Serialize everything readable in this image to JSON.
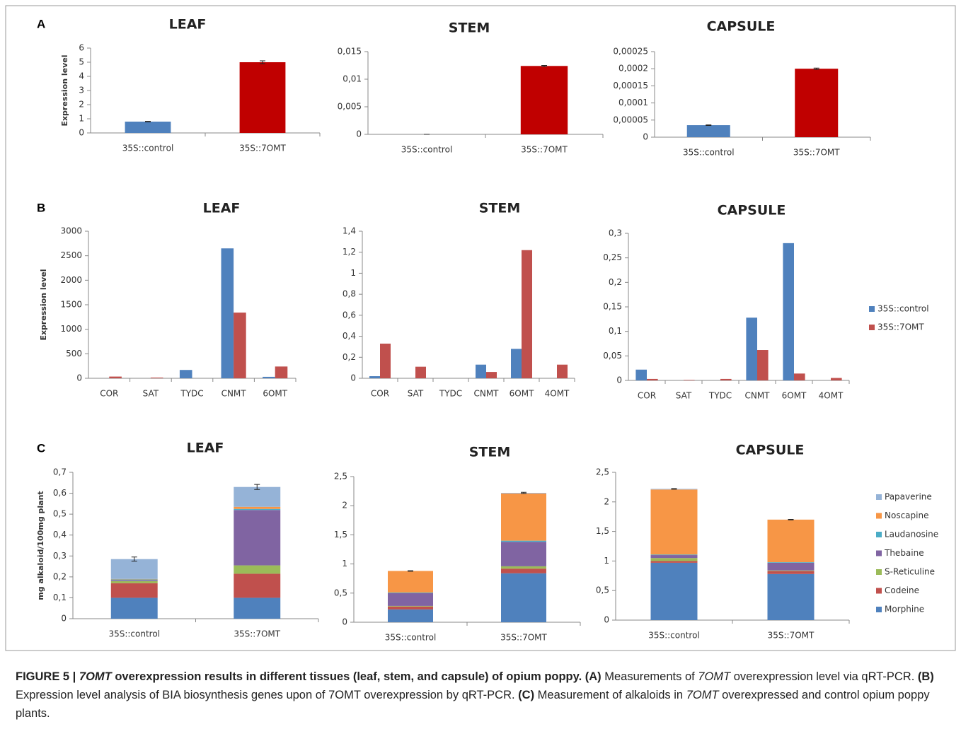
{
  "panels": [
    "A",
    "B",
    "C"
  ],
  "caption": [
    "FIGURE 5 | ",
    "7OMT",
    " overexpression results in different tissues (leaf, stem, and capsule) of opium poppy. ",
    "(A)",
    " Measurements of ",
    "7OMT",
    " overexpression level via qRT-PCR. ",
    "(B)",
    " Expression level analysis of BIA biosynthesis genes upon of 7OMT overexpression by qRT-PCR. ",
    "(C)",
    " Measurement of alkaloids in ",
    "7OMT",
    " overexpressed and control opium poppy plants."
  ],
  "chart_data": [
    {
      "type": "bar",
      "title": "LEAF",
      "y_label": "Expression level",
      "categories": [
        "35S::control",
        "35S::7OMT"
      ],
      "values": [
        0.8,
        5.0
      ],
      "errors": [
        0.02,
        0.1
      ],
      "colors": [
        "#4f81bd",
        "#c00000"
      ],
      "ylim": [
        0,
        6
      ],
      "yticks": [
        0,
        1,
        2,
        3,
        4,
        5,
        6
      ]
    },
    {
      "type": "bar",
      "title": "STEM",
      "categories": [
        "35S::control",
        "35S::7OMT"
      ],
      "values": [
        0,
        0.0124
      ],
      "errors": [
        0,
        0.0001
      ],
      "colors": [
        "#4f81bd",
        "#c00000"
      ],
      "ylim": [
        0,
        0.015
      ],
      "yticks": [
        0,
        {
          "value": 0.005,
          "label": "0,005"
        },
        {
          "value": 0.01,
          "label": "0,01"
        },
        {
          "value": 0.015,
          "label": "0,015"
        }
      ]
    },
    {
      "type": "bar",
      "title": "CAPSULE",
      "categories": [
        "35S::control",
        "35S::7OMT"
      ],
      "values": [
        3.5e-05,
        0.0002
      ],
      "errors": [
        1e-06,
        2e-06
      ],
      "colors": [
        "#4f81bd",
        "#c00000"
      ],
      "ylim": [
        0,
        0.00025
      ],
      "yticks": [
        0,
        {
          "value": 5e-05,
          "label": "0,00005"
        },
        {
          "value": 0.0001,
          "label": "0,0001"
        },
        {
          "value": 0.00015,
          "label": "0,00015"
        },
        {
          "value": 0.0002,
          "label": "0,0002"
        },
        {
          "value": 0.00025,
          "label": "0,00025"
        }
      ]
    },
    {
      "type": "bar",
      "title": "LEAF",
      "y_label": "Expression level",
      "categories": [
        "COR",
        "SAT",
        "TYDC",
        "CNMT",
        "6OMT"
      ],
      "series": [
        {
          "color": "#4f81bd",
          "values": [
            0,
            0,
            170,
            2650,
            30
          ]
        },
        {
          "color": "#c0504d",
          "values": [
            35,
            15,
            0,
            1340,
            240
          ]
        }
      ],
      "ylim": [
        0,
        3000
      ],
      "yticks": [
        0,
        500,
        1000,
        1500,
        2000,
        2500,
        3000
      ]
    },
    {
      "type": "bar",
      "title": "STEM",
      "categories": [
        "COR",
        "SAT",
        "TYDC",
        "CNMT",
        "6OMT",
        "4OMT"
      ],
      "series": [
        {
          "color": "#4f81bd",
          "values": [
            0.02,
            0,
            0,
            0.13,
            0.28,
            0
          ]
        },
        {
          "color": "#c0504d",
          "values": [
            0.33,
            0.11,
            0,
            0.06,
            1.22,
            0.13
          ]
        }
      ],
      "ylim": [
        0,
        1.4
      ],
      "yticks": [
        0,
        {
          "value": 0.2,
          "label": "0,2"
        },
        {
          "value": 0.4,
          "label": "0,4"
        },
        {
          "value": 0.6,
          "label": "0,6"
        },
        {
          "value": 0.8,
          "label": "0,8"
        },
        1,
        {
          "value": 1.2,
          "label": "1,2"
        },
        {
          "value": 1.4,
          "label": "1,4"
        }
      ]
    },
    {
      "type": "bar",
      "title": "CAPSULE",
      "categories": [
        "COR",
        "SAT",
        "TYDC",
        "CNMT",
        "6OMT",
        "4OMT"
      ],
      "series": [
        {
          "name": "35S::control",
          "color": "#4f81bd",
          "values": [
            0.022,
            0,
            0,
            0.128,
            0.28,
            0
          ]
        },
        {
          "name": "35S::7OMT",
          "color": "#c0504d",
          "values": [
            0.003,
            0.001,
            0.003,
            0.062,
            0.014,
            0.005
          ]
        }
      ],
      "legend": "right",
      "ylim": [
        0,
        0.3
      ],
      "yticks": [
        0,
        {
          "value": 0.05,
          "label": "0,05"
        },
        {
          "value": 0.1,
          "label": "0,1"
        },
        {
          "value": 0.15,
          "label": "0,15"
        },
        {
          "value": 0.2,
          "label": "0,2"
        },
        {
          "value": 0.25,
          "label": "0,25"
        },
        {
          "value": 0.3,
          "label": "0,3"
        }
      ]
    },
    {
      "type": "stacked_bar",
      "title": "LEAF",
      "y_label": "mg alkaloid/100mg plant",
      "categories": [
        "35S::control",
        "35S::7OMT"
      ],
      "series": [
        {
          "color": "#4f81bd",
          "values": [
            0.1,
            0.1
          ]
        },
        {
          "color": "#c0504d",
          "values": [
            0.07,
            0.115
          ]
        },
        {
          "color": "#9bbb59",
          "values": [
            0.01,
            0.04
          ]
        },
        {
          "color": "#8064a2",
          "values": [
            0.005,
            0.265
          ]
        },
        {
          "color": "#4bacc6",
          "values": [
            0.003,
            0.005
          ]
        },
        {
          "color": "#f79646",
          "values": [
            0.002,
            0.01
          ]
        },
        {
          "color": "#95b3d7",
          "values": [
            0.095,
            0.095
          ]
        }
      ],
      "errors": [
        0.01,
        0.012
      ],
      "ylim": [
        0,
        0.7
      ],
      "yticks": [
        0,
        {
          "value": 0.1,
          "label": "0,1"
        },
        {
          "value": 0.2,
          "label": "0,2"
        },
        {
          "value": 0.3,
          "label": "0,3"
        },
        {
          "value": 0.4,
          "label": "0,4"
        },
        {
          "value": 0.5,
          "label": "0,5"
        },
        {
          "value": 0.6,
          "label": "0,6"
        },
        {
          "value": 0.7,
          "label": "0,7"
        }
      ]
    },
    {
      "type": "stacked_bar",
      "title": "STEM",
      "categories": [
        "35S::control",
        "35S::7OMT"
      ],
      "series": [
        {
          "color": "#4f81bd",
          "values": [
            0.22,
            0.84
          ]
        },
        {
          "color": "#c0504d",
          "values": [
            0.05,
            0.08
          ]
        },
        {
          "color": "#9bbb59",
          "values": [
            0.01,
            0.04
          ]
        },
        {
          "color": "#8064a2",
          "values": [
            0.22,
            0.42
          ]
        },
        {
          "color": "#4bacc6",
          "values": [
            0.01,
            0.02
          ]
        },
        {
          "color": "#f79646",
          "values": [
            0.37,
            0.81
          ]
        },
        {
          "color": "#95b3d7",
          "values": [
            0,
            0.01
          ]
        }
      ],
      "errors": [
        0.005,
        0.01
      ],
      "ylim": [
        0,
        2.5
      ],
      "yticks": [
        0,
        {
          "value": 0.5,
          "label": "0,5"
        },
        1,
        {
          "value": 1.5,
          "label": "1,5"
        },
        2,
        {
          "value": 2.5,
          "label": "2,5"
        }
      ]
    },
    {
      "type": "stacked_bar",
      "title": "CAPSULE",
      "categories": [
        "35S::control",
        "35S::7OMT"
      ],
      "series": [
        {
          "name": "Morphine",
          "color": "#4f81bd",
          "values": [
            0.97,
            0.78
          ]
        },
        {
          "name": "Codeine",
          "color": "#c0504d",
          "values": [
            0.03,
            0.05
          ]
        },
        {
          "name": "S-Reticuline",
          "color": "#9bbb59",
          "values": [
            0.05,
            0.01
          ]
        },
        {
          "name": "Thebaine",
          "color": "#8064a2",
          "values": [
            0.05,
            0.13
          ]
        },
        {
          "name": "Laudanosine",
          "color": "#4bacc6",
          "values": [
            0.01,
            0.01
          ]
        },
        {
          "name": "Noscapine",
          "color": "#f79646",
          "values": [
            1.1,
            0.72
          ]
        },
        {
          "name": "Papaverine",
          "color": "#95b3d7",
          "values": [
            0.01,
            0
          ]
        }
      ],
      "errors": [
        0.005,
        0.005
      ],
      "legend": "right",
      "ylim": [
        0,
        2.5
      ],
      "yticks": [
        0,
        {
          "value": 0.5,
          "label": "0,5"
        },
        1,
        {
          "value": 1.5,
          "label": "1,5"
        },
        2,
        {
          "value": 2.5,
          "label": "2,5"
        }
      ]
    }
  ]
}
